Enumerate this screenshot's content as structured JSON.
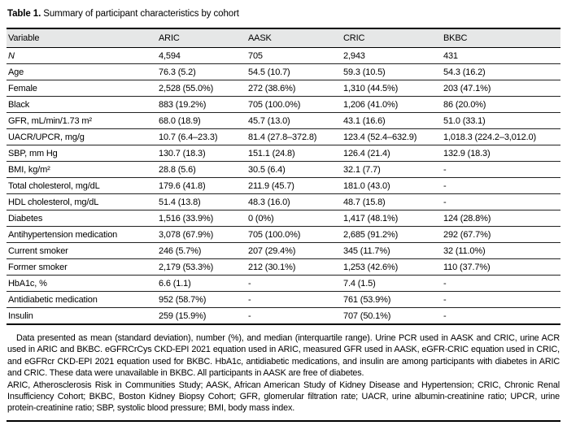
{
  "title": {
    "label": "Table 1.",
    "text": " Summary of participant characteristics by cohort"
  },
  "table": {
    "columns": [
      "Variable",
      "ARIC",
      "AASK",
      "CRIC",
      "BKBC"
    ],
    "rows": [
      {
        "variable": "N",
        "style": "italic",
        "values": [
          "4,594",
          "705",
          "2,943",
          "431"
        ]
      },
      {
        "variable": "Age",
        "values": [
          "76.3 (5.2)",
          "54.5 (10.7)",
          "59.3 (10.5)",
          "54.3 (16.2)"
        ]
      },
      {
        "variable": "Female",
        "values": [
          "2,528 (55.0%)",
          "272 (38.6%)",
          "1,310 (44.5%)",
          "203 (47.1%)"
        ]
      },
      {
        "variable": "Black",
        "values": [
          "883 (19.2%)",
          "705 (100.0%)",
          "1,206 (41.0%)",
          "86 (20.0%)"
        ]
      },
      {
        "variable": "GFR, mL/min/1.73 m²",
        "values": [
          "68.0 (18.9)",
          "45.7 (13.0)",
          "43.1 (16.6)",
          "51.0 (33.1)"
        ]
      },
      {
        "variable": "UACR/UPCR, mg/g",
        "values": [
          "10.7 (6.4–23.3)",
          "81.4 (27.8–372.8)",
          "123.4 (52.4–632.9)",
          "1,018.3 (224.2–3,012.0)"
        ]
      },
      {
        "variable": "SBP, mm Hg",
        "values": [
          "130.7 (18.3)",
          "151.1 (24.8)",
          "126.4 (21.4)",
          "132.9 (18.3)"
        ]
      },
      {
        "variable": "BMI, kg/m²",
        "values": [
          "28.8 (5.6)",
          "30.5 (6.4)",
          "32.1 (7.7)",
          "-"
        ]
      },
      {
        "variable": "Total cholesterol, mg/dL",
        "values": [
          "179.6 (41.8)",
          "211.9 (45.7)",
          "181.0 (43.0)",
          "-"
        ]
      },
      {
        "variable": "HDL cholesterol, mg/dL",
        "values": [
          "51.4 (13.8)",
          "48.3 (16.0)",
          "48.7 (15.8)",
          "-"
        ]
      },
      {
        "variable": "Diabetes",
        "values": [
          "1,516 (33.9%)",
          "0 (0%)",
          "1,417 (48.1%)",
          "124 (28.8%)"
        ]
      },
      {
        "variable": "Antihypertension medication",
        "values": [
          "3,078 (67.9%)",
          "705 (100.0%)",
          "2,685 (91.2%)",
          "292 (67.7%)"
        ]
      },
      {
        "variable": "Current smoker",
        "values": [
          "246 (5.7%)",
          "207 (29.4%)",
          "345 (11.7%)",
          "32 (11.0%)"
        ]
      },
      {
        "variable": "Former smoker",
        "values": [
          "2,179 (53.3%)",
          "212 (30.1%)",
          "1,253 (42.6%)",
          "110 (37.7%)"
        ]
      },
      {
        "variable": "HbA1c, %",
        "values": [
          "6.6 (1.1)",
          "-",
          "7.4 (1.5)",
          "-"
        ]
      },
      {
        "variable": "Antidiabetic medication",
        "values": [
          "952 (58.7%)",
          "-",
          "761 (53.9%)",
          "-"
        ]
      },
      {
        "variable": "Insulin",
        "values": [
          "259 (15.9%)",
          "-",
          "707 (50.1%)",
          "-"
        ]
      }
    ]
  },
  "footnote": {
    "paragraph1": "Data presented as mean (standard deviation), number (%), and median (interquartile range). Urine PCR used in AASK and CRIC, urine ACR used in ARIC and BKBC. eGFRCrCys CKD-EPI 2021 equation used in ARIC, measured GFR used in AASK, eGFR-CRIC equation used in CRIC, and eGFRcr CKD-EPI 2021 equation used for BKBC. HbA1c, antidiabetic medications, and insulin are among participants with diabetes in ARIC and CRIC. These data were unavailable in BKBC. All participants in AASK are free of diabetes.",
    "paragraph2": "ARIC, Atherosclerosis Risk in Communities Study; AASK, African American Study of Kidney Disease and Hypertension; CRIC, Chronic Renal Insufficiency Cohort; BKBC, Boston Kidney Biopsy Cohort; GFR, glomerular filtration rate; UACR, urine albumin-creatinine ratio; UPCR, urine protein-creatinine ratio; SBP, systolic blood pressure; BMI, body mass index."
  },
  "colors": {
    "header_bg": "#e6e7e7",
    "rule": "#000000",
    "text": "#000000"
  }
}
